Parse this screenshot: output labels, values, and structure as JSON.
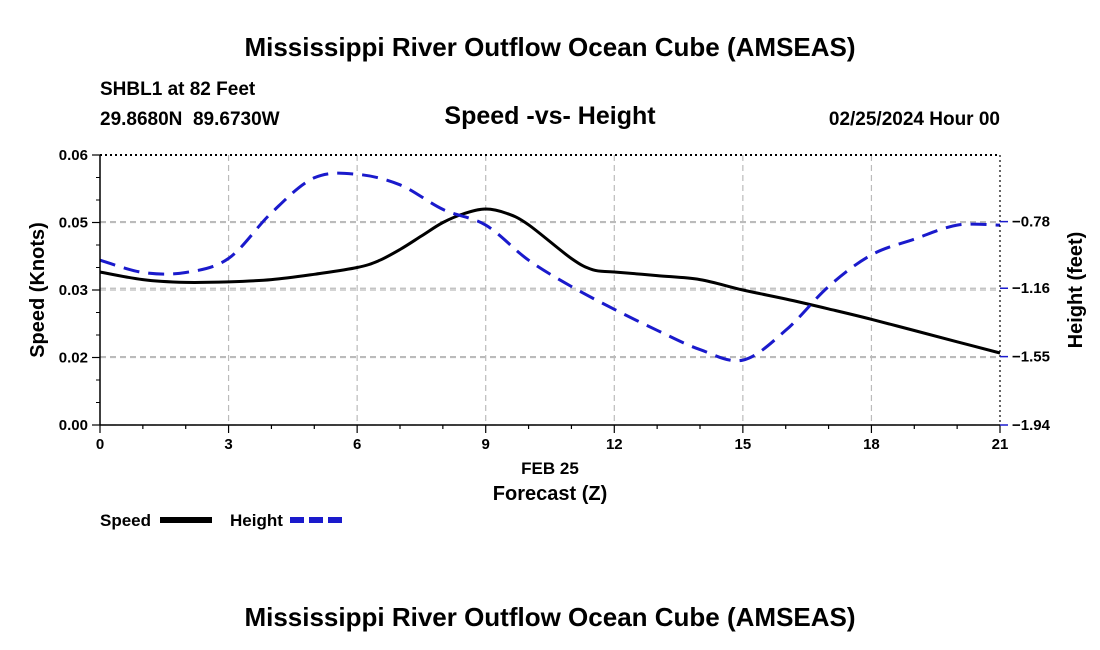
{
  "page": {
    "main_title": "Mississippi River Outflow Ocean Cube (AMSEAS)",
    "station_line": "SHBL1 at 82 Feet",
    "coords_line": "29.8680N  89.6730W",
    "date_line": "02/25/2024 Hour 00",
    "footer_title": "Mississippi River Outflow Ocean Cube (AMSEAS)"
  },
  "chart_data": {
    "type": "line",
    "title": "Speed -vs- Height",
    "xlabel": "Forecast (Z)",
    "date_label": "FEB 25",
    "ylabel_left": "Speed (Knots)",
    "ylabel_right": "Height (feet)",
    "xlim": [
      0,
      21
    ],
    "ylim_left": [
      0,
      0.06
    ],
    "ylim_right": [
      -1.94,
      -0.4
    ],
    "x_ticks": [
      0,
      3,
      6,
      9,
      12,
      15,
      18,
      21
    ],
    "x_tick_labels": [
      "0",
      "3",
      "6",
      "9",
      "12",
      "15",
      "18",
      "21"
    ],
    "y_left_ticks": [
      0,
      0.015,
      0.03,
      0.045,
      0.06
    ],
    "y_left_tick_labels": [
      "0.00",
      "0.02",
      "0.03",
      "0.05",
      "0.06"
    ],
    "y_right_ticks": [
      -0.78,
      -1.16,
      -1.55,
      -1.94
    ],
    "y_right_tick_labels": [
      "-0.78",
      "-1.16",
      "-1.55",
      "-1.94"
    ],
    "grid": true,
    "legend_position": "bottom-left",
    "colors": {
      "speed": "#000000",
      "height": "#1a1acc",
      "grid": "#bbbbbb"
    },
    "series": [
      {
        "name": "Speed",
        "axis": "left",
        "style": "solid",
        "x": [
          0,
          1,
          2,
          3,
          4,
          5,
          6,
          6.5,
          7,
          7.5,
          8,
          8.5,
          9,
          9.5,
          10,
          11,
          11.5,
          12,
          13,
          14,
          15,
          16,
          17,
          18,
          19,
          20,
          21
        ],
        "values": [
          0.034,
          0.0323,
          0.0317,
          0.0318,
          0.0323,
          0.0335,
          0.035,
          0.0365,
          0.039,
          0.042,
          0.045,
          0.047,
          0.048,
          0.047,
          0.0445,
          0.037,
          0.0345,
          0.034,
          0.0332,
          0.0323,
          0.03,
          0.028,
          0.0258,
          0.0235,
          0.021,
          0.0185,
          0.016
        ]
      },
      {
        "name": "Height",
        "axis": "right",
        "style": "dashed",
        "x": [
          0,
          1,
          2,
          3,
          4,
          5,
          6,
          7,
          8,
          9,
          10,
          11,
          12,
          13,
          14,
          15,
          16,
          17,
          18,
          19,
          20,
          21
        ],
        "values": [
          -1.0,
          -1.07,
          -1.07,
          -0.99,
          -0.73,
          -0.53,
          -0.51,
          -0.57,
          -0.71,
          -0.8,
          -1.0,
          -1.15,
          -1.28,
          -1.4,
          -1.51,
          -1.57,
          -1.4,
          -1.15,
          -0.97,
          -0.88,
          -0.8,
          -0.8
        ]
      }
    ]
  }
}
